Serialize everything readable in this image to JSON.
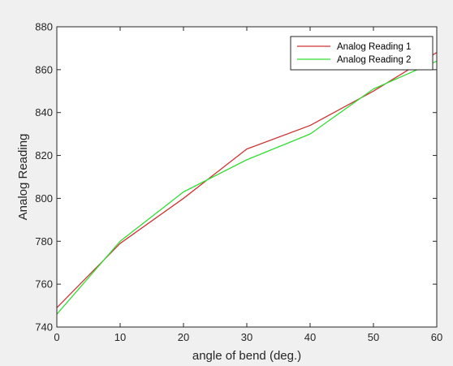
{
  "colors": {
    "figure_background": "#f0f0f0",
    "axes_background": "#ffffff",
    "axis": "#262626"
  },
  "chart_data": {
    "type": "line",
    "title": "",
    "xlabel": "angle of bend (deg.)",
    "ylabel": "Analog Reading",
    "xlim": [
      0,
      60
    ],
    "ylim": [
      740,
      880
    ],
    "x_ticks": [
      "0",
      "10",
      "20",
      "30",
      "40",
      "50",
      "60"
    ],
    "y_ticks": [
      "740",
      "760",
      "780",
      "800",
      "820",
      "840",
      "860",
      "880"
    ],
    "grid": false,
    "legend_position": "top-right",
    "series": [
      {
        "name": "Analog Reading 1",
        "color": "#cc3333",
        "x": [
          0,
          10,
          20,
          30,
          40,
          50,
          60
        ],
        "y": [
          749,
          779,
          800,
          823,
          834,
          850,
          868
        ]
      },
      {
        "name": "Analog Reading 2",
        "color": "#33dd33",
        "x": [
          0,
          10,
          20,
          30,
          40,
          50,
          60
        ],
        "y": [
          746,
          780,
          803,
          818,
          830,
          851,
          864
        ]
      }
    ]
  }
}
